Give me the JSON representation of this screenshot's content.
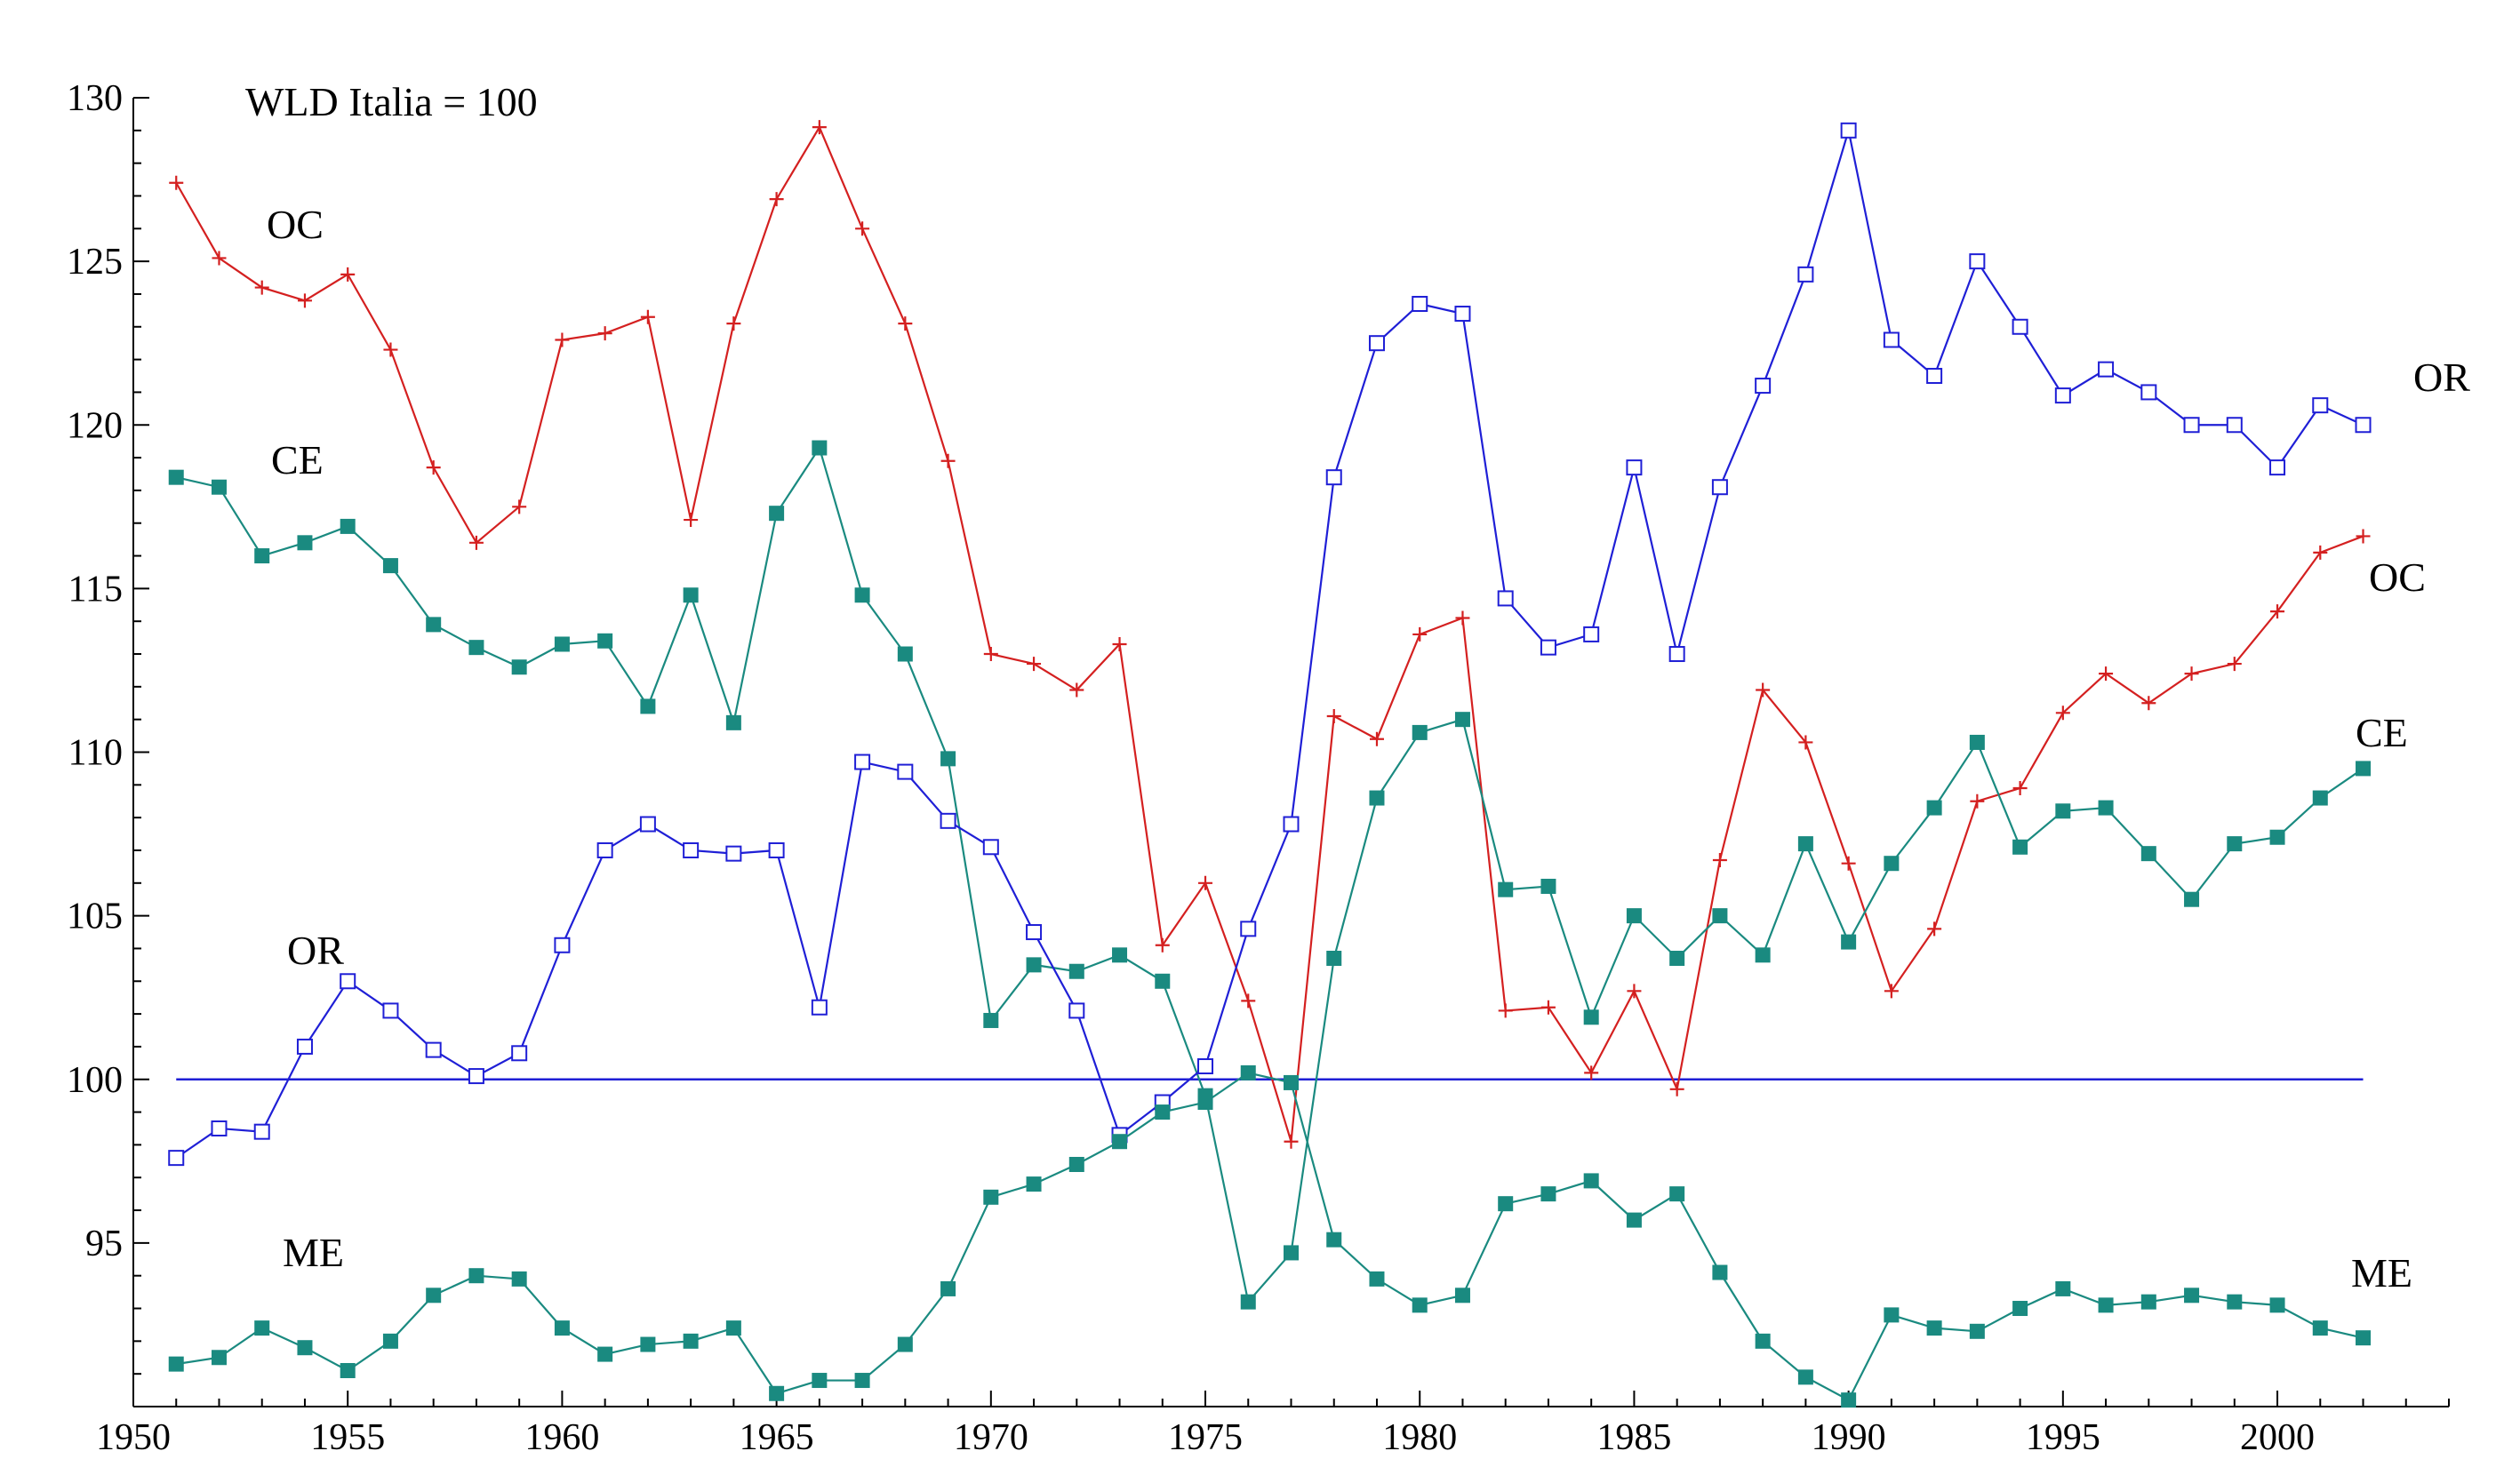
{
  "chart_data": {
    "type": "line",
    "title": "WLD  Italia = 100",
    "xlabel": "",
    "ylabel": "",
    "xlim": [
      1950,
      2004
    ],
    "ylim": [
      90,
      130
    ],
    "x_ticks": [
      1950,
      1955,
      1960,
      1965,
      1970,
      1975,
      1980,
      1985,
      1990,
      1995,
      2000
    ],
    "y_ticks": [
      95,
      100,
      105,
      110,
      115,
      120,
      125,
      130
    ],
    "reference_line": {
      "y": 100,
      "x_start": 1951,
      "x_end": 2002,
      "color": "#1f1fd6"
    },
    "grid": false,
    "x": [
      1951,
      1952,
      1953,
      1954,
      1955,
      1956,
      1957,
      1958,
      1959,
      1960,
      1961,
      1962,
      1963,
      1964,
      1965,
      1966,
      1967,
      1968,
      1969,
      1970,
      1971,
      1972,
      1973,
      1974,
      1975,
      1976,
      1977,
      1978,
      1979,
      1980,
      1981,
      1982,
      1983,
      1984,
      1985,
      1986,
      1987,
      1988,
      1989,
      1990,
      1991,
      1992,
      1993,
      1994,
      1995,
      1996,
      1997,
      1998,
      1999,
      2000,
      2001,
      2002
    ],
    "series": [
      {
        "name": "OC",
        "color": "#d42020",
        "marker": "plus",
        "label_positions": [
          "start",
          "end"
        ],
        "values": [
          127.4,
          125.1,
          124.2,
          123.8,
          124.6,
          122.3,
          118.7,
          116.4,
          117.5,
          122.6,
          122.8,
          123.3,
          117.1,
          123.1,
          126.9,
          129.1,
          126.0,
          123.1,
          118.9,
          113.0,
          112.7,
          111.9,
          113.3,
          104.1,
          106.0,
          102.4,
          98.1,
          111.1,
          110.4,
          113.6,
          114.1,
          102.1,
          102.2,
          100.2,
          102.7,
          99.7,
          106.7,
          111.9,
          110.3,
          106.6,
          102.7,
          104.6,
          108.5,
          108.9,
          111.2,
          112.4,
          111.5,
          112.4,
          112.7,
          114.3,
          116.1,
          116.6
        ]
      },
      {
        "name": "CE",
        "color": "#1a8a80",
        "marker": "filled-square",
        "label_positions": [
          "start",
          "end"
        ],
        "values": [
          118.4,
          118.1,
          116.0,
          116.4,
          116.9,
          115.7,
          113.9,
          113.2,
          112.6,
          113.3,
          113.4,
          111.4,
          114.8,
          110.9,
          117.3,
          119.3,
          114.8,
          113.0,
          109.8,
          101.8,
          103.5,
          103.3,
          103.8,
          103.0,
          99.5,
          93.2,
          94.7,
          103.7,
          108.6,
          110.6,
          111.0,
          105.8,
          105.9,
          101.9,
          105.0,
          103.7,
          105.0,
          103.8,
          107.2,
          104.2,
          106.6,
          108.3,
          110.3,
          107.1,
          108.2,
          108.3,
          106.9,
          105.5,
          107.2,
          107.4,
          108.6,
          109.5
        ]
      },
      {
        "name": "OR",
        "color": "#1f1fd6",
        "marker": "open-square",
        "label_positions": [
          "start",
          "end"
        ],
        "values": [
          97.6,
          98.5,
          98.4,
          101.0,
          103.0,
          102.1,
          100.9,
          100.1,
          100.8,
          104.1,
          107.0,
          107.8,
          107.0,
          106.9,
          107.0,
          102.2,
          109.7,
          109.4,
          107.9,
          107.1,
          104.5,
          102.1,
          98.3,
          99.3,
          100.4,
          104.6,
          107.8,
          118.4,
          122.5,
          123.7,
          123.4,
          114.7,
          113.2,
          113.6,
          118.7,
          113.0,
          118.1,
          121.2,
          124.6,
          129.0,
          122.6,
          121.5,
          125.0,
          123.0,
          120.9,
          121.7,
          121.0,
          120.0,
          120.0,
          118.7,
          120.6,
          120.0
        ]
      },
      {
        "name": "ME",
        "color": "#1a8a80",
        "marker": "filled-square",
        "label_positions": [
          "start",
          "end"
        ],
        "values": [
          91.3,
          91.5,
          92.4,
          91.8,
          91.1,
          92.0,
          93.4,
          94.0,
          93.9,
          92.4,
          91.6,
          91.9,
          92.0,
          92.4,
          90.4,
          90.8,
          90.8,
          91.9,
          93.6,
          96.4,
          96.8,
          97.4,
          98.1,
          99.0,
          99.3,
          100.2,
          99.9,
          95.1,
          93.9,
          93.1,
          93.4,
          96.2,
          96.5,
          96.9,
          95.7,
          96.5,
          94.1,
          92.0,
          90.9,
          90.2,
          92.8,
          92.4,
          92.3,
          93.0,
          93.6,
          93.1,
          93.2,
          93.4,
          93.2,
          93.1,
          92.4,
          92.1
        ]
      }
    ],
    "legend": "series labels placed next to lines at both ends"
  }
}
